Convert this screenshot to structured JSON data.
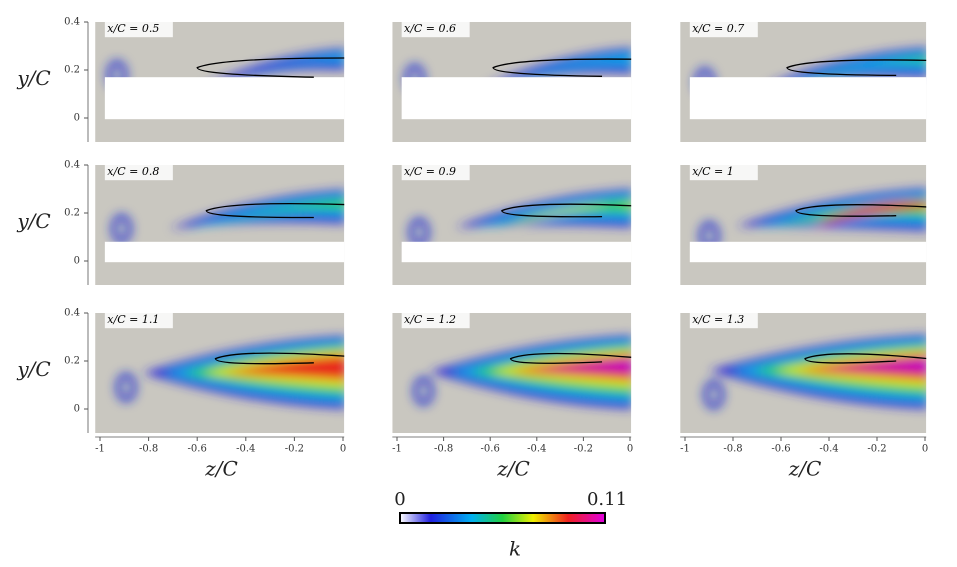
{
  "figure": {
    "panels": [
      {
        "label": "x/C = 0.5"
      },
      {
        "label": "x/C = 0.6"
      },
      {
        "label": "x/C = 0.7"
      },
      {
        "label": "x/C = 0.8"
      },
      {
        "label": "x/C = 0.9"
      },
      {
        "label": "x/C = 1"
      },
      {
        "label": "x/C = 1.1"
      },
      {
        "label": "x/C = 1.2"
      },
      {
        "label": "x/C = 1.3"
      }
    ],
    "y_axis_label": "y/C",
    "x_axis_label": "z/C",
    "y_ticks": [
      "0.4",
      "0.2",
      "0"
    ],
    "x_ticks": [
      "-1",
      "-0.8",
      "-0.6",
      "-0.4",
      "-0.2",
      "0"
    ],
    "colorbar": {
      "min_label": "0",
      "max_label": "0.11",
      "label": "k"
    }
  }
}
